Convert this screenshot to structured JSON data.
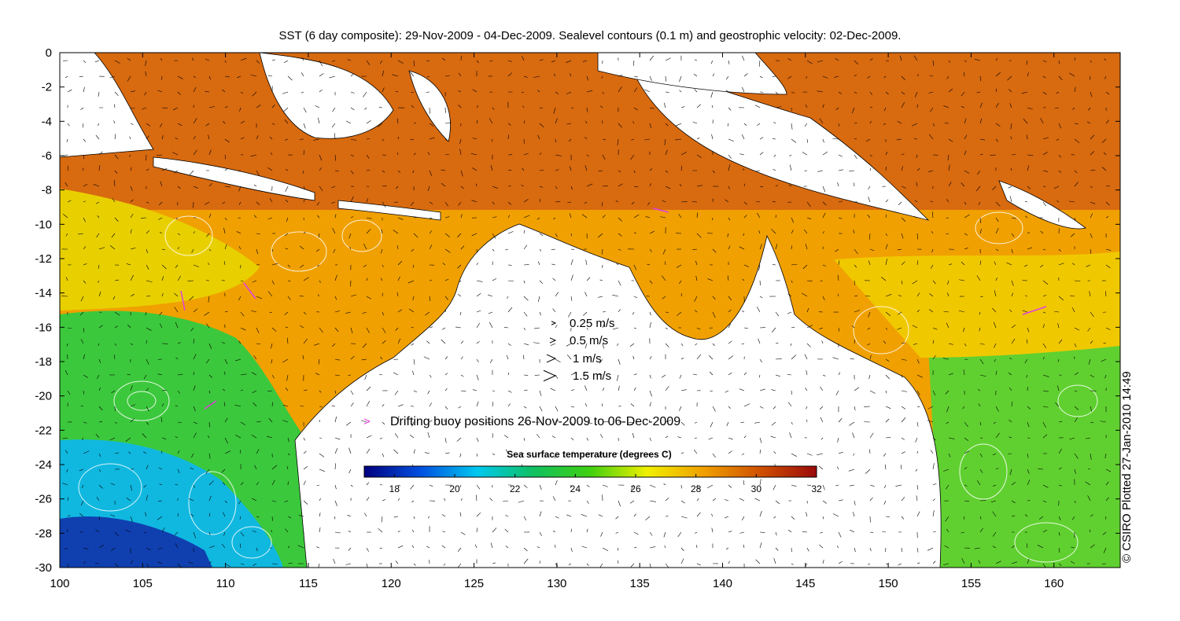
{
  "title": "SST (6 day composite): 29-Nov-2009 - 04-Dec-2009. Sealevel contours (0.1 m) and geostrophic velocity: 02-Dec-2009.",
  "credit": "© CSIRO Plotted 27-Jan-2010 14:49",
  "axes": {
    "x_range": [
      100,
      164
    ],
    "y_range": [
      -30,
      0
    ],
    "x_ticks": [
      "100",
      "105",
      "110",
      "115",
      "120",
      "125",
      "130",
      "135",
      "140",
      "145",
      "150",
      "155",
      "160"
    ],
    "y_ticks": [
      "0",
      "-2",
      "-4",
      "-6",
      "-8",
      "-10",
      "-12",
      "-14",
      "-16",
      "-18",
      "-20",
      "-22",
      "-24",
      "-26",
      "-28",
      "-30"
    ]
  },
  "velocity_legend": [
    {
      "label": "0.25 m/s",
      "speed": 0.25
    },
    {
      "label": "0.5 m/s",
      "speed": 0.5
    },
    {
      "label": "1 m/s",
      "speed": 1
    },
    {
      "label": "1.5 m/s",
      "speed": 1.5
    }
  ],
  "buoy_legend": {
    "symbol": ">",
    "label": "Drifting buoy positions 26-Nov-2009 to 06-Dec-2009",
    "color": "#e040e0"
  },
  "colorbar": {
    "title": "Sea surface temperature (degrees C)",
    "range": [
      17,
      32
    ],
    "ticks": [
      "18",
      "20",
      "22",
      "24",
      "26",
      "28",
      "30",
      "32"
    ],
    "colors": [
      "#00007f",
      "#0050e0",
      "#00c8f0",
      "#10c060",
      "#40d010",
      "#f0f000",
      "#f0a000",
      "#d05000",
      "#9a0a0a"
    ]
  },
  "colors": {
    "land": "#ffffff",
    "coast": "#000000",
    "contours": "#ffffff",
    "arrows": "#000000"
  }
}
